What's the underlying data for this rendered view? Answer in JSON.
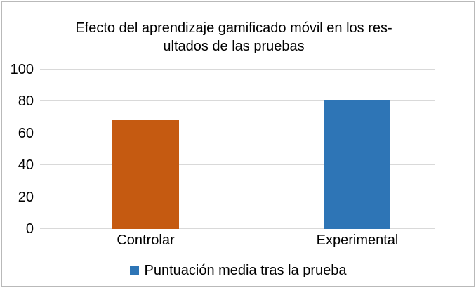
{
  "frame": {
    "border_color": "#b9b9b9",
    "background_color": "#ffffff"
  },
  "chart_data": {
    "type": "bar",
    "title": "Efecto del aprendizaje gamificado móvil en los resultados de las pruebas",
    "title_lines": [
      "Efecto del aprendizaje gamificado móvil en los res-",
      "ultados de las pruebas"
    ],
    "categories": [
      "Controlar",
      "Experimental"
    ],
    "series": [
      {
        "name": "Puntuación media tras la prueba",
        "values": [
          68.5,
          81
        ]
      }
    ],
    "bar_colors": [
      "#c55a11",
      "#2e75b6"
    ],
    "xlabel": "",
    "ylabel": "",
    "ylim": [
      0,
      100
    ],
    "yticks": [
      0,
      20,
      40,
      60,
      80,
      100
    ],
    "grid": true,
    "gridline_color": "#d9d9d9",
    "text_color": "#000000",
    "legend_position": "bottom"
  },
  "legend": {
    "label": "Puntuación media tras la prueba",
    "swatch_color": "#2e75b6"
  }
}
